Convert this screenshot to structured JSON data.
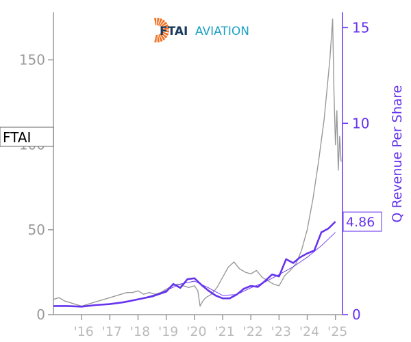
{
  "logo": {
    "name": "FTAI",
    "subname": "AVIATION",
    "sun_color": "#f26f21",
    "name_color": "#1b3a5c",
    "subname_color": "#1aa0c4"
  },
  "colors": {
    "price": "#999999",
    "revenue": "#6633ee",
    "axis_left": "#999999",
    "axis_right": "#6633ee",
    "label_box_border": "#666666"
  },
  "chart_data": {
    "type": "line",
    "ticker_label": "FTAI",
    "right_value_label": "4.86",
    "ylabel_right": "Q Revenue Per Share",
    "ylabel_left": "",
    "xlabel": "",
    "x_range": [
      2015.0,
      2025.25
    ],
    "ylim_left": [
      0,
      178
    ],
    "ylim_right": [
      0,
      15.8
    ],
    "yticks_left": [
      0,
      50,
      100,
      150
    ],
    "yticks_right": [
      0,
      5,
      10,
      15
    ],
    "xticks": [
      {
        "x": 2016,
        "label": "'16"
      },
      {
        "x": 2017,
        "label": "'17"
      },
      {
        "x": 2018,
        "label": "'18"
      },
      {
        "x": 2019,
        "label": "'19"
      },
      {
        "x": 2020,
        "label": "'20"
      },
      {
        "x": 2021,
        "label": "'21"
      },
      {
        "x": 2022,
        "label": "'22"
      },
      {
        "x": 2023,
        "label": "'23"
      },
      {
        "x": 2024,
        "label": "'24"
      },
      {
        "x": 2025,
        "label": "'25"
      }
    ],
    "series": [
      {
        "name": "FTAI",
        "axis": "left",
        "x": [
          2015.0,
          2015.2,
          2015.4,
          2015.6,
          2015.8,
          2016.0,
          2016.2,
          2016.4,
          2016.6,
          2016.8,
          2017.0,
          2017.2,
          2017.4,
          2017.6,
          2017.8,
          2018.0,
          2018.2,
          2018.4,
          2018.6,
          2018.8,
          2019.0,
          2019.2,
          2019.4,
          2019.6,
          2019.8,
          2020.0,
          2020.12,
          2020.2,
          2020.3,
          2020.4,
          2020.6,
          2020.8,
          2021.0,
          2021.2,
          2021.4,
          2021.6,
          2021.8,
          2022.0,
          2022.2,
          2022.4,
          2022.6,
          2022.8,
          2023.0,
          2023.2,
          2023.4,
          2023.6,
          2023.8,
          2024.0,
          2024.2,
          2024.4,
          2024.6,
          2024.8,
          2024.9,
          2024.95,
          2025.0,
          2025.05,
          2025.1,
          2025.15,
          2025.2
        ],
        "y": [
          9,
          10,
          8,
          7,
          6,
          5,
          6,
          7,
          8,
          9,
          10,
          11,
          12,
          13,
          13,
          14,
          12,
          13,
          12,
          13,
          15,
          17,
          18,
          17,
          16,
          17,
          14,
          5,
          8,
          10,
          12,
          16,
          22,
          28,
          31,
          27,
          25,
          24,
          26,
          22,
          20,
          18,
          17,
          23,
          26,
          30,
          38,
          50,
          68,
          90,
          115,
          150,
          174,
          130,
          100,
          120,
          85,
          105,
          90
        ]
      },
      {
        "name": "Q Revenue Per Share",
        "axis": "right",
        "x": [
          2015.0,
          2015.5,
          2016.0,
          2016.5,
          2017.0,
          2017.5,
          2018.0,
          2018.5,
          2019.0,
          2019.25,
          2019.5,
          2019.75,
          2020.0,
          2020.25,
          2020.5,
          2020.75,
          2021.0,
          2021.25,
          2021.5,
          2021.75,
          2022.0,
          2022.25,
          2022.5,
          2022.75,
          2023.0,
          2023.25,
          2023.5,
          2023.75,
          2024.0,
          2024.25,
          2024.5,
          2024.75,
          2025.0
        ],
        "y": [
          0.45,
          0.45,
          0.42,
          0.5,
          0.55,
          0.65,
          0.8,
          0.95,
          1.2,
          1.6,
          1.4,
          1.85,
          1.9,
          1.55,
          1.25,
          1.0,
          0.85,
          0.85,
          1.05,
          1.35,
          1.5,
          1.45,
          1.75,
          2.1,
          2.0,
          2.9,
          2.7,
          3.0,
          3.2,
          3.35,
          4.3,
          4.5,
          4.86
        ]
      },
      {
        "name": "",
        "axis": "right",
        "style": "thin",
        "x": [
          2015.0,
          2016.0,
          2017.0,
          2018.0,
          2018.75,
          2019.5,
          2020.0,
          2020.5,
          2021.0,
          2021.5,
          2022.0,
          2022.5,
          2023.0,
          2023.5,
          2024.0,
          2024.5,
          2025.0
        ],
        "y": [
          0.45,
          0.45,
          0.55,
          0.8,
          1.1,
          1.6,
          1.75,
          1.4,
          1.0,
          1.05,
          1.4,
          1.7,
          2.1,
          2.5,
          3.0,
          3.6,
          4.3
        ]
      }
    ]
  }
}
